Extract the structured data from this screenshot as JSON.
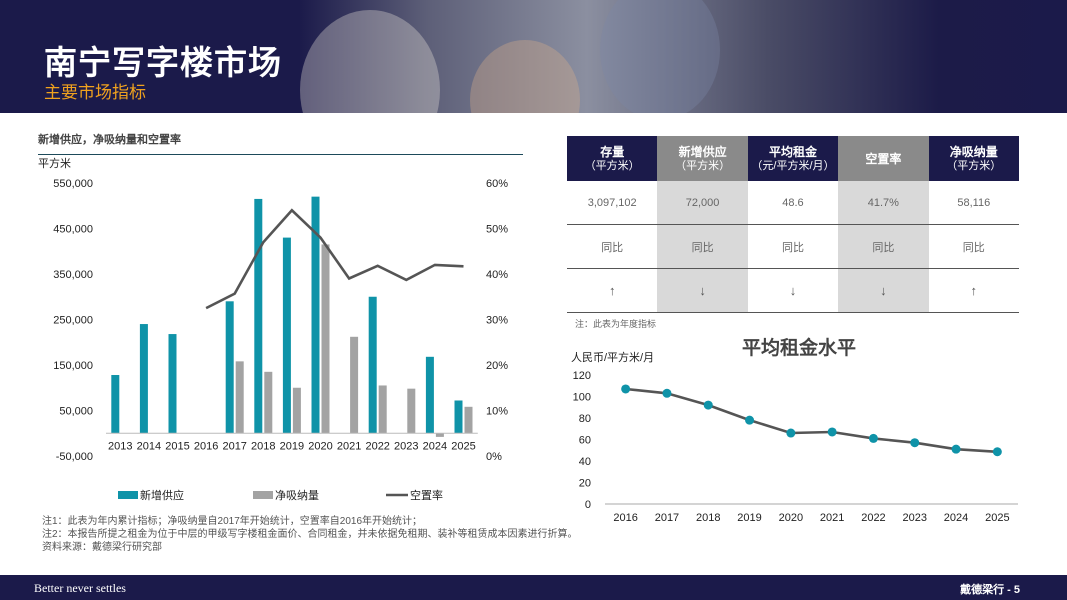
{
  "header": {
    "title": "南宁写字楼市场",
    "subtitle": "主要市场指标"
  },
  "colors": {
    "navy": "#1b1a4a",
    "teal": "#0f93a8",
    "grey": "#a3a3a3",
    "line": "#555555",
    "accent": "#f0a21e"
  },
  "left_chart": {
    "title": "新增供应，净吸纳量和空置率"
  },
  "table": {
    "headers": [
      {
        "label": "存量",
        "unit": "（平方米）",
        "color": "#1b1a4a"
      },
      {
        "label": "新增供应",
        "unit": "（平方米）",
        "color": "#8a8a8a"
      },
      {
        "label": "平均租金",
        "unit": "（元/平方米/月）",
        "color": "#1b1a4a"
      },
      {
        "label": "空置率",
        "unit": "",
        "color": "#8a8a8a"
      },
      {
        "label": "净吸纳量",
        "unit": "（平方米）",
        "color": "#1b1a4a"
      }
    ],
    "shaded_columns": [
      1,
      3
    ],
    "rows": [
      [
        "3,097,102",
        "72,000",
        "48.6",
        "41.7%",
        "58,116"
      ],
      [
        "同比",
        "同比",
        "同比",
        "同比",
        "同比"
      ],
      [
        "↑",
        "↓",
        "↓",
        "↓",
        "↑"
      ]
    ],
    "note": "注：此表为年度指标"
  },
  "footnotes": [
    "注1：此表为年内累计指标；净吸纳量自2017年开始统计，空置率自2016年开始统计；",
    "注2：本报告所提之租金为位于中层的甲级写字楼租金面价、合同租金，并未依据免租期、装补等租赁成本因素进行折算。",
    "资料来源：戴德梁行研究部"
  ],
  "footer": {
    "tagline": "Better never settles",
    "page": "戴德梁行 - 5"
  },
  "chart_data": [
    {
      "type": "bar",
      "categories": [
        "2013",
        "2014",
        "2015",
        "2016",
        "2017",
        "2018",
        "2019",
        "2020",
        "2021",
        "2022",
        "2023",
        "2024",
        "2025"
      ],
      "ylabel": "平方米",
      "ylim": [
        -50000,
        550000
      ],
      "yticks": [
        "550,000",
        "450,000",
        "350,000",
        "250,000",
        "150,000",
        "50,000",
        "-50,000"
      ],
      "y2lim": [
        0,
        60
      ],
      "y2ticks": [
        "60%",
        "50%",
        "40%",
        "30%",
        "20%",
        "10%",
        "0%"
      ],
      "series": [
        {
          "name": "新增供应",
          "type": "bar",
          "color": "#0f93a8",
          "values": [
            128000,
            240000,
            218000,
            null,
            290000,
            515000,
            430000,
            520000,
            null,
            300000,
            null,
            168000,
            72000
          ]
        },
        {
          "name": "净吸纳量",
          "type": "bar",
          "color": "#a3a3a3",
          "values": [
            null,
            null,
            null,
            null,
            158000,
            135000,
            100000,
            415000,
            212000,
            105000,
            98000,
            -8000,
            58116
          ]
        },
        {
          "name": "空置率",
          "type": "line",
          "axis": "right",
          "color": "#555555",
          "values": [
            null,
            null,
            null,
            32.5,
            35.7,
            47.0,
            54.0,
            48.0,
            39.0,
            41.8,
            38.7,
            42.0,
            41.7
          ]
        }
      ],
      "legend_position": "bottom"
    },
    {
      "type": "line",
      "title": "平均租金水平",
      "ylabel": "人民币/平方米/月",
      "categories": [
        "2016",
        "2017",
        "2018",
        "2019",
        "2020",
        "2021",
        "2022",
        "2023",
        "2024",
        "2025"
      ],
      "ylim": [
        0,
        120
      ],
      "yticks": [
        "120",
        "100",
        "80",
        "60",
        "40",
        "20",
        "0"
      ],
      "series": [
        {
          "name": "平均租金",
          "color": "#0f93a8",
          "line_color": "#555555",
          "values": [
            107,
            103,
            92,
            78,
            66,
            67,
            61,
            57,
            51,
            48.6
          ]
        }
      ]
    }
  ]
}
